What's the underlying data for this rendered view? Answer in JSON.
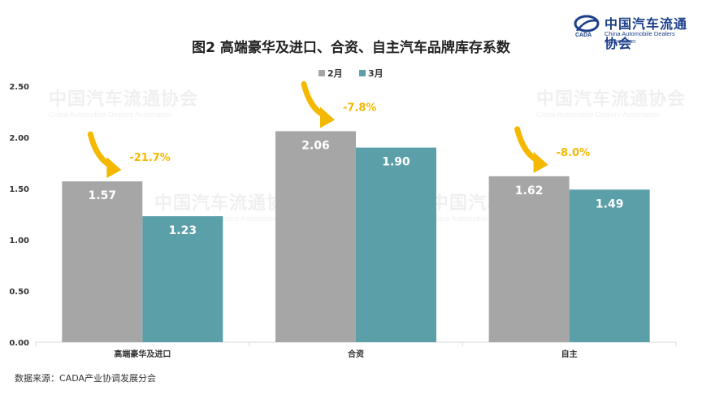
{
  "logo": {
    "cn": "中国汽车流通协会",
    "en": "China Automobile Dealers Association",
    "color": "#1c3f8a",
    "icon": "cada-logo-icon"
  },
  "source_note": "数据来源：CADA产业协调发展分会",
  "chart_data": {
    "type": "bar",
    "title": "图2  高端豪华及进口、合资、自主汽车品牌库存系数",
    "categories": [
      "高端豪华及进口",
      "合资",
      "自主"
    ],
    "series": [
      {
        "name": "2月",
        "values": [
          1.57,
          2.06,
          1.62
        ],
        "labels": [
          "1.57",
          "2.06",
          "1.62"
        ],
        "color": "#a6a6a6"
      },
      {
        "name": "3月",
        "values": [
          1.23,
          1.9,
          1.49
        ],
        "labels": [
          "1.23",
          "1.90",
          "1.49"
        ],
        "color": "#5b9fa9"
      }
    ],
    "yticks": [
      "0.00",
      "0.50",
      "1.00",
      "1.50",
      "2.00",
      "2.50"
    ],
    "ylim": [
      0,
      2.5
    ],
    "grid": false,
    "legend_position": "top-center",
    "annotations": [
      {
        "category": "高端豪华及进口",
        "text": "-21.7%"
      },
      {
        "category": "合资",
        "text": "-7.8%"
      },
      {
        "category": "自主",
        "text": "-8.0%"
      }
    ],
    "annotation_color": "#f5b800",
    "arrow_color": "#f5b800",
    "xlabel": "",
    "ylabel": ""
  }
}
